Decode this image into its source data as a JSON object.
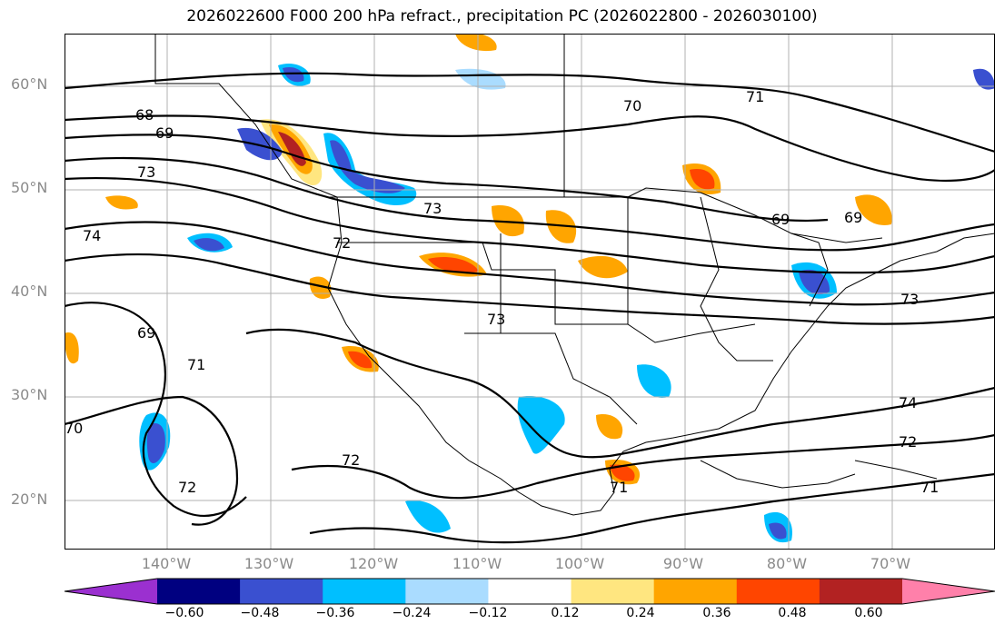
{
  "title": "2026022600 F000 200 hPa refract., precipitation PC (2026022800 - 2026030100)",
  "lat_labels": [
    "60°N",
    "50°N",
    "40°N",
    "30°N",
    "20°N"
  ],
  "lon_labels": [
    "140°W",
    "130°W",
    "120°W",
    "110°W",
    "100°W",
    "90°W",
    "80°W",
    "70°W"
  ],
  "contour_labels": [
    "68",
    "69",
    "73",
    "74",
    "72",
    "73",
    "70",
    "71",
    "69",
    "69",
    "73",
    "73",
    "69",
    "71",
    "70",
    "72",
    "72",
    "71",
    "74",
    "72",
    "71"
  ],
  "colorbar": {
    "ticks": [
      "−0.60",
      "−0.48",
      "−0.36",
      "−0.24",
      "−0.12",
      "0.12",
      "0.24",
      "0.36",
      "0.48",
      "0.60"
    ],
    "colors": [
      "#9b30d0",
      "#000080",
      "#3a50d0",
      "#00bfff",
      "#aadcff",
      "#ffffff",
      "#ffe680",
      "#ffa500",
      "#ff4500",
      "#b22222",
      "#ff80aa"
    ]
  }
}
